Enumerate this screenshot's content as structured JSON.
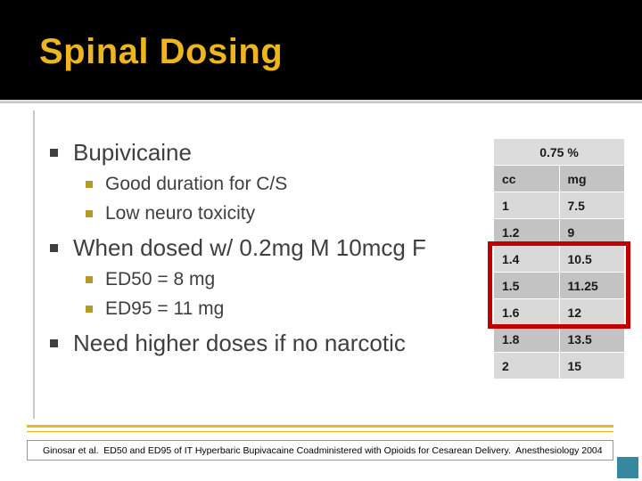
{
  "slide": {
    "title": "Spinal Dosing",
    "footer": "Ginosar et al.  ED50 and ED95 of IT Hyperbaric Bupivacaine Coadministered with Opioids for Cesarean Delivery.  Anesthesiology 2004"
  },
  "bullets": [
    {
      "level": 1,
      "text": "Bupivicaine"
    },
    {
      "level": 2,
      "text": "Good duration for C/S"
    },
    {
      "level": 2,
      "text": "Low neuro toxicity"
    },
    {
      "level": 1,
      "text": "When dosed w/ 0.2mg M 10mcg F"
    },
    {
      "level": 2,
      "text": "ED50 = 8 mg"
    },
    {
      "level": 2,
      "text": "ED95 = 11 mg"
    },
    {
      "level": 1,
      "text": "Need higher doses if no narcotic"
    }
  ],
  "chart_data": {
    "type": "table",
    "title": "0.75 %",
    "columns": [
      "cc",
      "mg"
    ],
    "rows": [
      [
        "1",
        "7.5"
      ],
      [
        "1.2",
        "9"
      ],
      [
        "1.4",
        "10.5"
      ],
      [
        "1.5",
        "11.25"
      ],
      [
        "1.6",
        "12"
      ],
      [
        "1.8",
        "13.5"
      ],
      [
        "2",
        "15"
      ]
    ],
    "highlighted_cc_values": [
      "1.4",
      "1.5",
      "1.6"
    ]
  },
  "colors": {
    "title_accent": "#EDB51E",
    "level1_bullet": "#3F3F3F",
    "level2_bullet": "#B5992A",
    "highlight_red": "#C00000",
    "corner_teal": "#35889E"
  }
}
